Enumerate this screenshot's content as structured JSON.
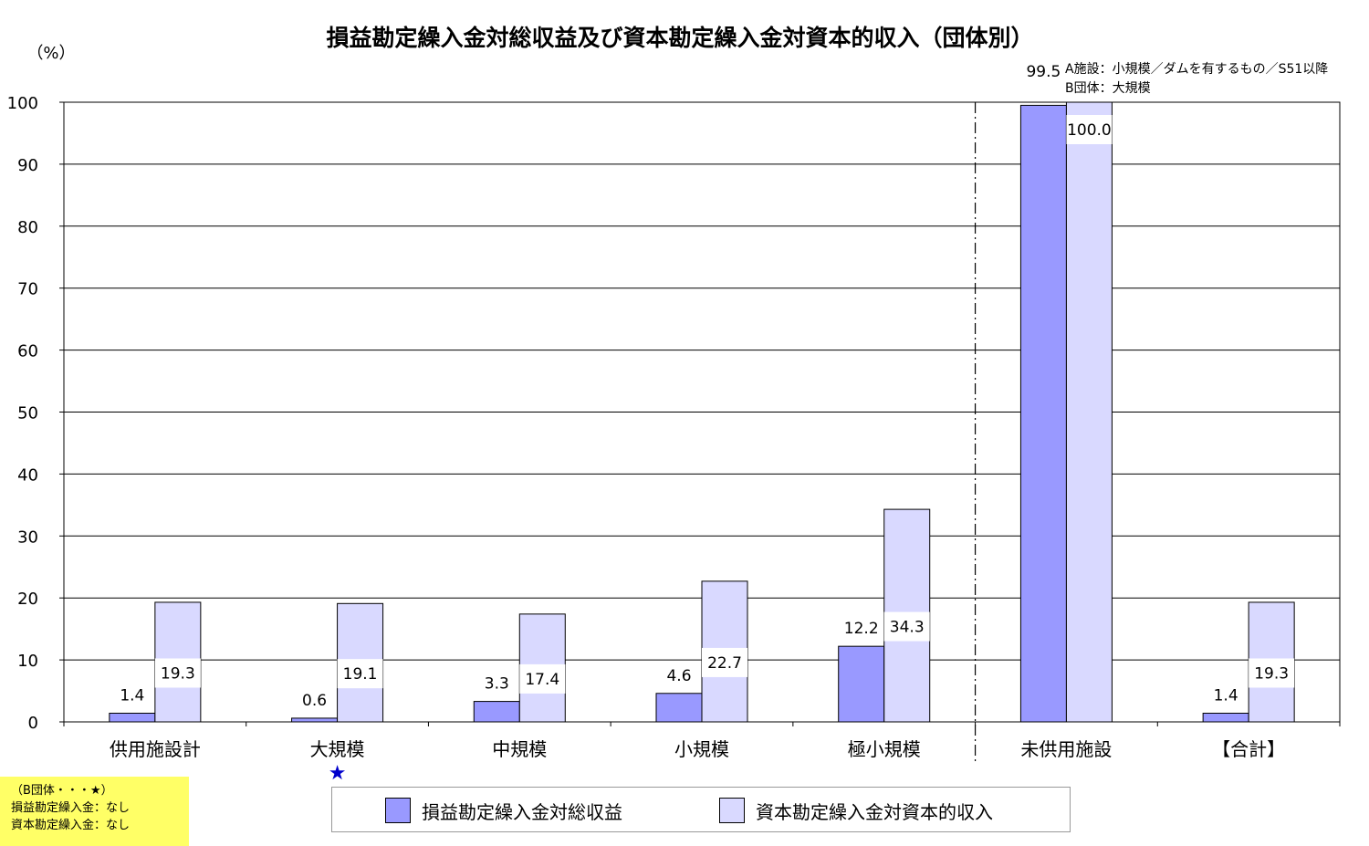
{
  "chart_data": {
    "type": "bar",
    "title": "損益勘定繰入金対総収益及び資本勘定繰入金対資本的収入（団体別）",
    "ylabel": "（%）",
    "ylim": [
      0,
      100
    ],
    "yticks": [
      0,
      10,
      20,
      30,
      40,
      50,
      60,
      70,
      80,
      90,
      100
    ],
    "categories": [
      "供用施設計",
      "大規模",
      "中規模",
      "小規模",
      "極小規模",
      "未供用施設",
      "【合計】"
    ],
    "series": [
      {
        "name": "損益勘定繰入金対総収益",
        "color": "#9999ff",
        "values": [
          1.4,
          0.6,
          3.3,
          4.6,
          12.2,
          99.5,
          1.4
        ],
        "labels": [
          "1.4",
          "0.6",
          "3.3",
          "4.6",
          "12.2",
          "99.5",
          "1.4"
        ]
      },
      {
        "name": "資本勘定繰入金対資本的収入",
        "color": "#d9d9ff",
        "values": [
          19.3,
          19.1,
          17.4,
          22.7,
          34.3,
          100.0,
          19.3
        ],
        "labels": [
          "19.3",
          "19.1",
          "17.4",
          "22.7",
          "34.3",
          "100.0",
          "19.3"
        ]
      }
    ],
    "grid": true,
    "legend": "bottom",
    "divider_after_category": "極小規模",
    "category_marker": {
      "category": "大規模",
      "symbol": "★",
      "color": "#0000cc"
    },
    "annotation": {
      "line1": "A施設：小規模／ダムを有するもの／S51以降",
      "line2": "B団体：大規模"
    }
  },
  "note": {
    "line1": "（B団体・・・★）",
    "line2": "損益勘定繰入金：なし",
    "line3": "資本勘定繰入金：なし"
  }
}
